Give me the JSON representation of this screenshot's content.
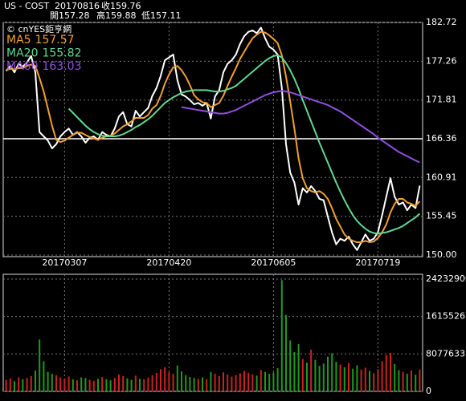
{
  "chart_data": [
    {
      "type": "line",
      "quote": {
        "symbol": "US - COST",
        "date": "20170816",
        "close_label": "收",
        "open_label": "開",
        "open": 157.28,
        "high_label": "高",
        "high": 159.88,
        "low_label": "低",
        "low": 157.11
      },
      "watermark": "© cnYES鉅亨網",
      "categories": [
        null,
        null,
        null,
        null,
        null,
        null,
        null,
        null,
        null,
        null,
        null,
        null,
        null,
        null,
        "20170307",
        null,
        null,
        null,
        null,
        null,
        null,
        null,
        null,
        null,
        null,
        null,
        null,
        null,
        null,
        null,
        null,
        null,
        null,
        null,
        null,
        null,
        null,
        null,
        null,
        "20170420",
        null,
        null,
        null,
        null,
        null,
        null,
        null,
        null,
        null,
        null,
        null,
        null,
        null,
        null,
        null,
        null,
        null,
        null,
        null,
        null,
        null,
        null,
        null,
        null,
        "20170605",
        null,
        null,
        null,
        null,
        null,
        null,
        null,
        null,
        null,
        null,
        null,
        null,
        null,
        null,
        null,
        null,
        null,
        null,
        null,
        null,
        null,
        null,
        null,
        null,
        "20170719",
        null,
        null,
        null,
        null,
        null,
        null,
        null,
        null,
        null,
        null
      ],
      "ylim": [
        150,
        182.72
      ],
      "yticks": [
        182.72,
        177.26,
        171.81,
        166.36,
        160.91,
        155.45,
        {
          "value": 150,
          "label": "150.00"
        }
      ],
      "grid": true,
      "series": [
        {
          "color": "#ffffff",
          "values": [
            175.9,
            176.6,
            175.7,
            176.9,
            176.5,
            177.1,
            178.0,
            175.7,
            167.3,
            166.7,
            166.1,
            165.0,
            165.6,
            166.7,
            167.3,
            167.8,
            166.9,
            167.3,
            166.7,
            165.8,
            166.5,
            166.7,
            166.2,
            167.3,
            166.9,
            166.7,
            167.8,
            169.5,
            170.1,
            168.4,
            168.1,
            170.3,
            169.5,
            170.1,
            170.7,
            172.4,
            173.5,
            175.2,
            177.4,
            177.8,
            178.2,
            174.6,
            172.6,
            172.3,
            171.8,
            171.2,
            171.4,
            171.0,
            171.4,
            169.2,
            172.3,
            173.2,
            175.7,
            176.9,
            177.4,
            178.2,
            179.7,
            180.8,
            181.4,
            181.6,
            181.2,
            182.0,
            180.5,
            179.3,
            178.9,
            178.2,
            173.5,
            165.6,
            161.6,
            160.2,
            157.1,
            159.4,
            158.8,
            159.7,
            159.0,
            157.9,
            157.7,
            155.4,
            153.2,
            151.5,
            152.3,
            152.0,
            152.6,
            151.5,
            150.7,
            151.8,
            152.9,
            152.0,
            152.3,
            153.2,
            155.6,
            158.2,
            160.8,
            158.2,
            157.1,
            157.4,
            156.3,
            157.1,
            156.6,
            159.76
          ]
        },
        {
          "name": "MA5",
          "color": "#f0a030",
          "values": [
            176.0,
            176.2,
            176.1,
            176.3,
            176.3,
            176.6,
            176.8,
            176.6,
            174.9,
            173.0,
            170.6,
            168.2,
            166.2,
            165.9,
            166.1,
            166.5,
            166.9,
            167.2,
            167.2,
            166.9,
            166.6,
            166.4,
            166.2,
            166.5,
            166.7,
            166.8,
            167.1,
            167.6,
            168.1,
            168.4,
            168.8,
            169.3,
            169.3,
            169.3,
            169.7,
            170.6,
            171.1,
            172.4,
            174.1,
            175.4,
            176.4,
            176.6,
            176.0,
            175.1,
            173.9,
            172.5,
            171.9,
            171.5,
            171.4,
            170.8,
            171.1,
            171.4,
            172.4,
            173.8,
            175.1,
            176.3,
            177.6,
            178.6,
            179.6,
            180.5,
            181.0,
            181.4,
            181.3,
            180.9,
            180.4,
            179.8,
            178.1,
            175.1,
            171.6,
            167.8,
            163.6,
            160.8,
            159.4,
            159.0,
            158.8,
            159.0,
            158.6,
            157.9,
            156.6,
            155.1,
            154.0,
            152.9,
            152.3,
            152.0,
            151.8,
            151.8,
            152.0,
            151.8,
            151.9,
            152.4,
            153.2,
            154.3,
            156.0,
            157.2,
            157.9,
            157.9,
            157.4,
            157.2,
            156.9,
            157.57
          ]
        },
        {
          "name": "MA20",
          "color": "#60d890",
          "values": [
            null,
            null,
            null,
            null,
            null,
            null,
            null,
            null,
            null,
            null,
            null,
            null,
            null,
            null,
            null,
            170.6,
            170.0,
            169.4,
            168.8,
            168.2,
            167.7,
            167.3,
            167.0,
            166.8,
            166.7,
            166.7,
            166.7,
            166.8,
            167.0,
            167.3,
            167.6,
            168.0,
            168.3,
            168.7,
            169.1,
            169.6,
            170.2,
            170.8,
            171.4,
            171.8,
            172.2,
            172.5,
            172.8,
            173.0,
            173.1,
            173.2,
            173.2,
            173.2,
            173.2,
            173.1,
            173.0,
            173.0,
            173.1,
            173.3,
            173.5,
            173.8,
            174.3,
            174.8,
            175.3,
            175.8,
            176.3,
            176.8,
            177.3,
            177.7,
            178.0,
            178.1,
            177.8,
            177.0,
            176.0,
            174.8,
            173.4,
            171.8,
            170.3,
            168.8,
            167.3,
            165.8,
            164.4,
            163.0,
            161.6,
            160.2,
            158.9,
            157.7,
            156.6,
            155.6,
            154.8,
            154.2,
            153.7,
            153.3,
            153.1,
            153.0,
            153.1,
            153.2,
            153.4,
            153.6,
            153.8,
            154.1,
            154.5,
            154.9,
            155.3,
            155.82
          ]
        },
        {
          "name": "MA60",
          "color": "#9050e0",
          "values": [
            null,
            null,
            null,
            null,
            null,
            null,
            null,
            null,
            null,
            null,
            null,
            null,
            null,
            null,
            null,
            null,
            null,
            null,
            null,
            null,
            null,
            null,
            null,
            null,
            null,
            null,
            null,
            null,
            null,
            null,
            null,
            null,
            null,
            null,
            null,
            null,
            null,
            null,
            null,
            null,
            null,
            null,
            170.8,
            170.7,
            170.6,
            170.5,
            170.4,
            170.3,
            170.2,
            170.1,
            170.0,
            169.9,
            169.9,
            170.0,
            170.2,
            170.4,
            170.7,
            171.0,
            171.3,
            171.6,
            171.9,
            172.2,
            172.5,
            172.7,
            172.9,
            173.0,
            173.1,
            173.0,
            172.9,
            172.7,
            172.5,
            172.3,
            172.1,
            171.9,
            171.7,
            171.5,
            171.3,
            171.1,
            170.8,
            170.5,
            170.2,
            169.8,
            169.4,
            169.0,
            168.6,
            168.2,
            167.8,
            167.4,
            167.0,
            166.5,
            166.1,
            165.7,
            165.3,
            164.9,
            164.5,
            164.2,
            163.9,
            163.6,
            163.3,
            163.03
          ]
        }
      ]
    },
    {
      "type": "bar",
      "up_color": "#cc2222",
      "down_color": "#1f9a1f",
      "ylim": [
        0,
        24232900
      ],
      "yticks": [
        24232900,
        16155267,
        8077633,
        0
      ],
      "grid": true,
      "values": [
        2500000,
        2800000,
        2200000,
        3000000,
        2600000,
        2900000,
        3300000,
        4500000,
        11200000,
        6500000,
        4200000,
        3800000,
        3500000,
        3000000,
        2800000,
        3200000,
        2600000,
        2400000,
        3000000,
        2900000,
        2500000,
        2300000,
        2700000,
        3100000,
        2600000,
        2400000,
        2900000,
        3600000,
        3300000,
        2800000,
        2500000,
        3400000,
        2700000,
        2600000,
        3000000,
        3500000,
        4000000,
        4800000,
        5200000,
        4100000,
        3800000,
        5600000,
        4300000,
        3500000,
        3100000,
        2900000,
        2700000,
        3000000,
        2600000,
        4200000,
        3800000,
        3300000,
        4100000,
        3600000,
        3200000,
        3500000,
        3900000,
        4400000,
        4000000,
        3700000,
        3400000,
        4600000,
        4200000,
        3800000,
        4100000,
        5000000,
        24000000,
        16500000,
        11000000,
        8500000,
        10200000,
        7000000,
        6200000,
        9000000,
        6800000,
        5500000,
        6000000,
        7500000,
        8200000,
        6400000,
        5800000,
        5200000,
        6100000,
        4900000,
        5600000,
        4700000,
        5100000,
        4400000,
        3900000,
        4800000,
        6500000,
        7800000,
        8300000,
        5900000,
        4600000,
        4200000,
        3800000,
        4500000,
        3600000,
        4700000
      ]
    }
  ]
}
